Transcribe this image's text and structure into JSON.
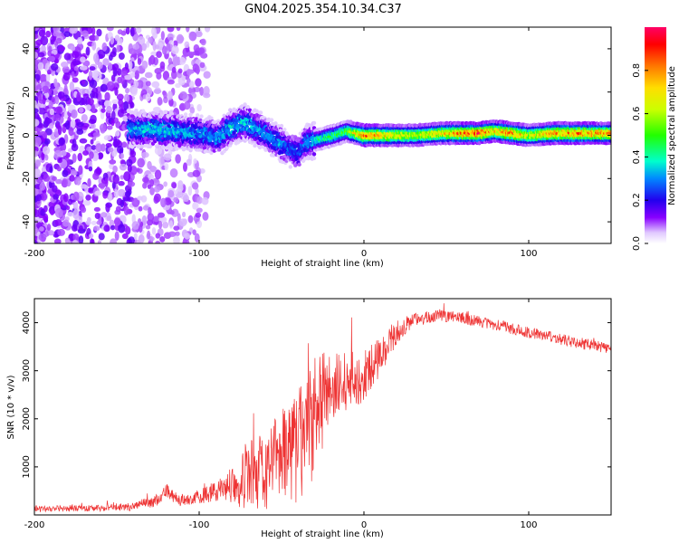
{
  "title": "GN04.2025.354.10.34.C37",
  "chart_data": [
    {
      "type": "heatmap",
      "name": "spectrogram",
      "xlabel": "Height of straight line (km)",
      "ylabel": "Frequency (Hz)",
      "xlim": [
        -200,
        150
      ],
      "ylim": [
        -50,
        50
      ],
      "xticks": [
        -200,
        -100,
        0,
        100
      ],
      "yticks": [
        -40,
        -20,
        0,
        20,
        40
      ],
      "ridge": [
        {
          "x": -143,
          "y": 3,
          "a": 0.3
        },
        {
          "x": -130,
          "y": 3,
          "a": 0.35
        },
        {
          "x": -115,
          "y": 2,
          "a": 0.35
        },
        {
          "x": -100,
          "y": 1,
          "a": 0.3
        },
        {
          "x": -88,
          "y": -1,
          "a": 0.3
        },
        {
          "x": -80,
          "y": 4,
          "a": 0.35
        },
        {
          "x": -72,
          "y": 6,
          "a": 0.35
        },
        {
          "x": -62,
          "y": 2,
          "a": 0.3
        },
        {
          "x": -50,
          "y": -4,
          "a": 0.3
        },
        {
          "x": -40,
          "y": -8,
          "a": 0.25
        },
        {
          "x": -35,
          "y": -3,
          "a": 0.3
        },
        {
          "x": -28,
          "y": -2,
          "a": 0.4
        },
        {
          "x": -18,
          "y": 0,
          "a": 0.45
        },
        {
          "x": -10,
          "y": 2,
          "a": 0.5
        },
        {
          "x": -5,
          "y": 1,
          "a": 0.65
        },
        {
          "x": 0,
          "y": 0,
          "a": 0.8
        },
        {
          "x": 10,
          "y": 0,
          "a": 0.7
        },
        {
          "x": 30,
          "y": 0,
          "a": 0.6
        },
        {
          "x": 50,
          "y": 1,
          "a": 0.7
        },
        {
          "x": 70,
          "y": 1,
          "a": 0.85
        },
        {
          "x": 80,
          "y": 2,
          "a": 0.7
        },
        {
          "x": 90,
          "y": 1,
          "a": 0.8
        },
        {
          "x": 100,
          "y": 0,
          "a": 0.6
        },
        {
          "x": 115,
          "y": 1,
          "a": 0.75
        },
        {
          "x": 130,
          "y": 1,
          "a": 0.8
        },
        {
          "x": 150,
          "y": 1,
          "a": 0.75
        }
      ],
      "colorbar": {
        "label": "Normalized spectral amplitude",
        "range": [
          0,
          1
        ],
        "ticks": [
          0.0,
          0.2,
          0.4,
          0.6,
          0.8
        ],
        "tick_labels": [
          "0.0",
          "0.2",
          "0.4",
          "0.6",
          "0.8"
        ]
      }
    },
    {
      "type": "line",
      "name": "snr",
      "xlabel": "Height of straight line (km)",
      "ylabel": "SNR (10 * v/v)",
      "xlim": [
        -200,
        150
      ],
      "ylim": [
        0,
        4500
      ],
      "xticks": [
        -200,
        -100,
        0,
        100
      ],
      "yticks": [
        1000,
        2000,
        3000,
        4000
      ],
      "color": "#ee3333",
      "envelope": [
        {
          "x": -200,
          "mean": 130,
          "spread": 60
        },
        {
          "x": -160,
          "mean": 140,
          "spread": 70
        },
        {
          "x": -140,
          "mean": 180,
          "spread": 90
        },
        {
          "x": -125,
          "mean": 300,
          "spread": 120
        },
        {
          "x": -120,
          "mean": 500,
          "spread": 150
        },
        {
          "x": -112,
          "mean": 300,
          "spread": 120
        },
        {
          "x": -100,
          "mean": 380,
          "spread": 150
        },
        {
          "x": -85,
          "mean": 550,
          "spread": 250
        },
        {
          "x": -72,
          "mean": 800,
          "spread": 700
        },
        {
          "x": -60,
          "mean": 900,
          "spread": 800
        },
        {
          "x": -48,
          "mean": 1300,
          "spread": 1000
        },
        {
          "x": -38,
          "mean": 1500,
          "spread": 1300
        },
        {
          "x": -28,
          "mean": 2200,
          "spread": 1200
        },
        {
          "x": -20,
          "mean": 2600,
          "spread": 800
        },
        {
          "x": -10,
          "mean": 2700,
          "spread": 700
        },
        {
          "x": 0,
          "mean": 2900,
          "spread": 500
        },
        {
          "x": 10,
          "mean": 3300,
          "spread": 400
        },
        {
          "x": 20,
          "mean": 3800,
          "spread": 250
        },
        {
          "x": 30,
          "mean": 4050,
          "spread": 150
        },
        {
          "x": 45,
          "mean": 4150,
          "spread": 120
        },
        {
          "x": 60,
          "mean": 4100,
          "spread": 120
        },
        {
          "x": 80,
          "mean": 3950,
          "spread": 120
        },
        {
          "x": 100,
          "mean": 3800,
          "spread": 120
        },
        {
          "x": 120,
          "mean": 3650,
          "spread": 120
        },
        {
          "x": 150,
          "mean": 3450,
          "spread": 120
        }
      ]
    }
  ]
}
